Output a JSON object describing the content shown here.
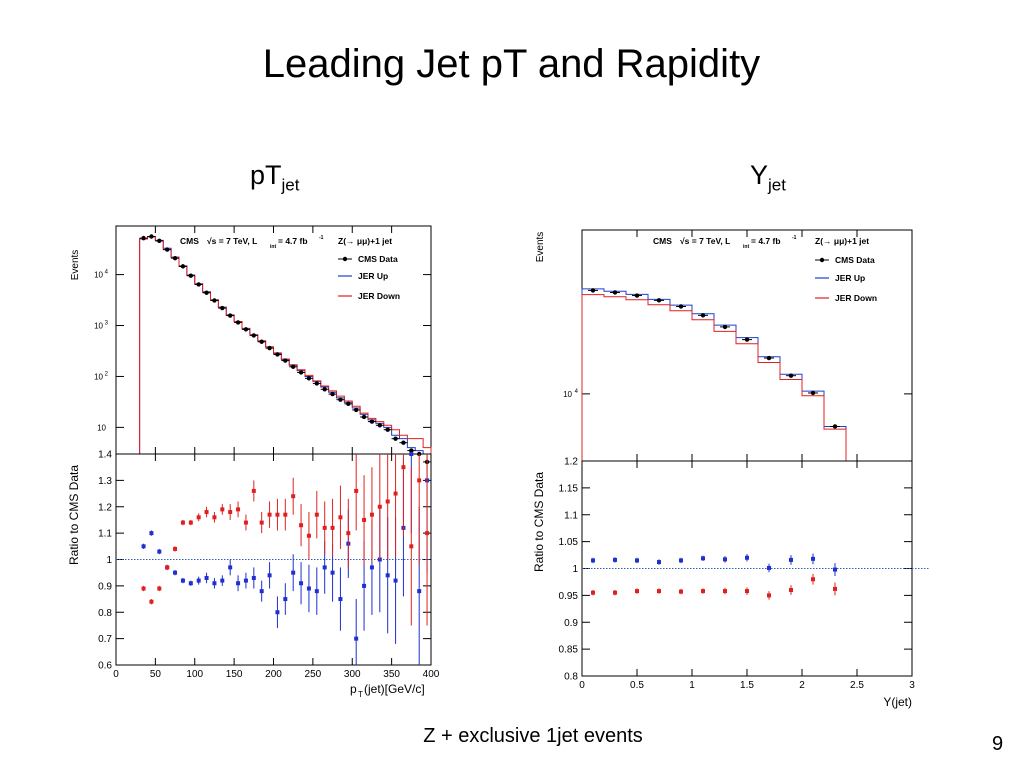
{
  "slide": {
    "title": "Leading Jet pT and Rapidity",
    "caption": "Z + exclusive 1jet events",
    "page_number": "9"
  },
  "panels": {
    "left": {
      "title_main": "pT",
      "title_sub": "jet"
    },
    "right": {
      "title_main": "Y",
      "title_sub": "jet"
    }
  },
  "chart_data": [
    {
      "type": "line",
      "panel": "pT distribution",
      "ylabel": "Events",
      "yscale": "log",
      "ylim": [
        3,
        90000
      ],
      "xlim": [
        0,
        400
      ],
      "y_ticks": [
        "10",
        "10^2",
        "10^3",
        "10^4"
      ],
      "header": {
        "cms": "CMS",
        "energy": "√s = 7 TeV, L",
        "lumi_sub": "int",
        "lumi_val": " = 4.7 fb",
        "lumi_sup": "-1",
        "process": "Z(→ μμ)+1 jet"
      },
      "legend": [
        "CMS Data",
        "JER Up",
        "JER Down"
      ],
      "series": [
        {
          "name": "CMS Data",
          "color": "#000000",
          "x": [
            35,
            45,
            55,
            65,
            75,
            85,
            95,
            105,
            115,
            125,
            135,
            145,
            155,
            165,
            175,
            185,
            195,
            205,
            215,
            225,
            235,
            245,
            255,
            265,
            275,
            285,
            295,
            305,
            315,
            325,
            335,
            345,
            355,
            365,
            375,
            385,
            395
          ],
          "values": [
            52000,
            56000,
            46000,
            31000,
            21000,
            14500,
            9500,
            6400,
            4400,
            3100,
            2200,
            1570,
            1150,
            840,
            640,
            480,
            360,
            270,
            205,
            155,
            120,
            92,
            73,
            56,
            45,
            35,
            29,
            22,
            16,
            13,
            11,
            9,
            6,
            5,
            3.5,
            3,
            2.1
          ]
        },
        {
          "name": "JER Up",
          "color": "#1f3fd0",
          "edges": [
            30,
            40,
            50,
            60,
            70,
            80,
            90,
            100,
            110,
            120,
            130,
            140,
            150,
            160,
            170,
            180,
            190,
            200,
            210,
            220,
            230,
            240,
            250,
            260,
            270,
            280,
            290,
            300,
            310,
            320,
            330,
            340,
            350,
            360,
            370,
            380,
            390,
            400
          ],
          "values": [
            51000,
            56000,
            47000,
            33000,
            22000,
            14800,
            9800,
            6600,
            4600,
            3200,
            2300,
            1620,
            1200,
            880,
            660,
            500,
            380,
            280,
            215,
            165,
            130,
            100,
            80,
            62,
            49,
            38,
            31,
            24,
            18,
            14,
            12,
            10,
            7,
            6,
            4,
            3.5,
            3
          ]
        },
        {
          "name": "JER Down",
          "color": "#e02020",
          "edges": [
            30,
            40,
            50,
            60,
            70,
            80,
            90,
            100,
            110,
            120,
            130,
            140,
            150,
            160,
            170,
            180,
            190,
            200,
            210,
            220,
            230,
            240,
            250,
            260,
            270,
            280,
            290,
            300,
            310,
            320,
            330,
            340,
            350,
            360,
            370,
            380,
            390,
            400
          ],
          "values": [
            50000,
            55000,
            46000,
            31000,
            21500,
            14400,
            9600,
            6500,
            4500,
            3150,
            2250,
            1600,
            1200,
            860,
            650,
            500,
            380,
            290,
            220,
            170,
            135,
            105,
            82,
            65,
            52,
            41,
            33,
            26,
            19,
            15,
            13,
            11,
            9,
            7,
            6,
            6,
            4
          ]
        }
      ]
    },
    {
      "type": "scatter",
      "panel": "pT ratio",
      "xlabel": "p",
      "xlabel_sub": "T",
      "xlabel_rest": "(jet)[GeV/c]",
      "ylabel": "Ratio to CMS Data",
      "xlim": [
        0,
        400
      ],
      "ylim": [
        0.6,
        1.4
      ],
      "x_ticks": [
        "0",
        "50",
        "100",
        "150",
        "200",
        "250",
        "300",
        "350",
        "400"
      ],
      "y_ticks": [
        "0.6",
        "0.7",
        "0.8",
        "0.9",
        "1",
        "1.1",
        "1.2",
        "1.3",
        "1.4"
      ],
      "series": [
        {
          "name": "JER Up",
          "color": "#1f2fd0",
          "x": [
            35,
            45,
            55,
            65,
            75,
            85,
            95,
            105,
            115,
            125,
            135,
            145,
            155,
            165,
            175,
            185,
            195,
            205,
            215,
            225,
            235,
            245,
            255,
            265,
            275,
            285,
            295,
            305,
            315,
            325,
            335,
            345,
            355,
            365,
            375,
            385,
            395
          ],
          "values": [
            1.05,
            1.1,
            1.03,
            0.97,
            0.95,
            0.92,
            0.91,
            0.92,
            0.93,
            0.91,
            0.92,
            0.97,
            0.91,
            0.92,
            0.93,
            0.88,
            0.94,
            0.8,
            0.85,
            0.95,
            0.91,
            0.89,
            0.88,
            0.97,
            0.95,
            0.85,
            1.06,
            0.7,
            0.9,
            0.97,
            1.0,
            0.94,
            0.92,
            1.12,
            1.4,
            0.88,
            1.3
          ],
          "err": [
            0.01,
            0.01,
            0.01,
            0.01,
            0.01,
            0.01,
            0.01,
            0.015,
            0.02,
            0.02,
            0.02,
            0.03,
            0.03,
            0.03,
            0.04,
            0.04,
            0.05,
            0.06,
            0.06,
            0.07,
            0.08,
            0.09,
            0.09,
            0.1,
            0.11,
            0.12,
            0.13,
            0.15,
            0.17,
            0.18,
            0.2,
            0.22,
            0.24,
            0.26,
            0.3,
            0.32,
            0.35
          ]
        },
        {
          "name": "JER Down",
          "color": "#e02020",
          "x": [
            35,
            45,
            55,
            65,
            75,
            85,
            95,
            105,
            115,
            125,
            135,
            145,
            155,
            165,
            175,
            185,
            195,
            205,
            215,
            225,
            235,
            245,
            255,
            265,
            275,
            285,
            295,
            305,
            315,
            325,
            335,
            345,
            355,
            365,
            375,
            385,
            395
          ],
          "values": [
            0.89,
            0.84,
            0.89,
            0.97,
            1.04,
            1.14,
            1.14,
            1.16,
            1.18,
            1.16,
            1.19,
            1.18,
            1.19,
            1.14,
            1.26,
            1.14,
            1.17,
            1.17,
            1.17,
            1.24,
            1.13,
            1.09,
            1.17,
            1.12,
            1.12,
            1.16,
            1.1,
            1.26,
            1.15,
            1.17,
            1.2,
            1.22,
            1.25,
            1.35,
            1.05,
            1.3,
            1.1
          ],
          "err": [
            0.01,
            0.01,
            0.01,
            0.01,
            0.01,
            0.01,
            0.01,
            0.015,
            0.02,
            0.02,
            0.02,
            0.03,
            0.03,
            0.03,
            0.04,
            0.04,
            0.05,
            0.06,
            0.06,
            0.07,
            0.08,
            0.09,
            0.09,
            0.1,
            0.11,
            0.12,
            0.13,
            0.15,
            0.17,
            0.18,
            0.2,
            0.22,
            0.24,
            0.26,
            0.3,
            0.32,
            0.35
          ]
        }
      ]
    },
    {
      "type": "line",
      "panel": "Y distribution",
      "ylabel": "Events",
      "yscale": "log",
      "ylim": [
        4800,
        60000
      ],
      "xlim": [
        0,
        3
      ],
      "y_ticks": [
        "10^4"
      ],
      "header": {
        "cms": "CMS",
        "energy": "√s = 7 TeV, L",
        "lumi_sub": "int",
        "lumi_val": " = 4.7 fb",
        "lumi_sup": "-1",
        "process": "Z(→ μμ)+1 jet"
      },
      "legend": [
        "CMS Data",
        "JER Up",
        "JER Down"
      ],
      "series": [
        {
          "name": "CMS Data",
          "color": "#000000",
          "x": [
            0.1,
            0.3,
            0.5,
            0.7,
            0.9,
            1.1,
            1.3,
            1.5,
            1.7,
            1.9,
            2.1,
            2.3
          ],
          "values": [
            31000,
            30300,
            29300,
            27800,
            26000,
            23600,
            20800,
            18100,
            14800,
            12200,
            10100,
            7000
          ]
        },
        {
          "name": "JER Up",
          "color": "#1f3fd0",
          "edges": [
            0,
            0.2,
            0.4,
            0.6,
            0.8,
            1.0,
            1.2,
            1.4,
            1.6,
            1.8,
            2.0,
            2.2,
            2.4
          ],
          "values": [
            31500,
            30700,
            29700,
            28100,
            26400,
            24000,
            21200,
            18500,
            15000,
            12400,
            10300,
            7000
          ]
        },
        {
          "name": "JER Down",
          "color": "#e02020",
          "edges": [
            0,
            0.2,
            0.4,
            0.6,
            0.8,
            1.0,
            1.2,
            1.4,
            1.6,
            1.8,
            2.0,
            2.2,
            2.4
          ],
          "values": [
            29600,
            28900,
            28000,
            26500,
            24800,
            22500,
            19800,
            17300,
            14100,
            11700,
            9800,
            6800
          ]
        }
      ]
    },
    {
      "type": "scatter",
      "panel": "Y ratio",
      "xlabel": "Y(jet)",
      "ylabel": "Ratio to CMS Data",
      "xlim": [
        0,
        3
      ],
      "ylim": [
        0.8,
        1.2
      ],
      "x_ticks": [
        "0",
        "0.5",
        "1",
        "1.5",
        "2",
        "2.5",
        "3"
      ],
      "y_ticks": [
        "0.8",
        "0.85",
        "0.9",
        "0.95",
        "1",
        "1.05",
        "1.1",
        "1.15",
        "1.2"
      ],
      "series": [
        {
          "name": "JER Up",
          "color": "#1f2fd0",
          "x": [
            0.1,
            0.3,
            0.5,
            0.7,
            0.9,
            1.1,
            1.3,
            1.5,
            1.7,
            1.9,
            2.1,
            2.3
          ],
          "values": [
            1.015,
            1.016,
            1.015,
            1.012,
            1.015,
            1.019,
            1.017,
            1.02,
            1.001,
            1.016,
            1.018,
            0.998
          ],
          "err": [
            0.005,
            0.005,
            0.005,
            0.005,
            0.005,
            0.005,
            0.006,
            0.007,
            0.008,
            0.009,
            0.01,
            0.012
          ]
        },
        {
          "name": "JER Down",
          "color": "#e02020",
          "x": [
            0.1,
            0.3,
            0.5,
            0.7,
            0.9,
            1.1,
            1.3,
            1.5,
            1.7,
            1.9,
            2.1,
            2.3
          ],
          "values": [
            0.955,
            0.955,
            0.958,
            0.958,
            0.957,
            0.958,
            0.958,
            0.958,
            0.95,
            0.96,
            0.98,
            0.962
          ],
          "err": [
            0.005,
            0.005,
            0.005,
            0.005,
            0.005,
            0.005,
            0.006,
            0.007,
            0.008,
            0.009,
            0.01,
            0.012
          ]
        }
      ]
    }
  ]
}
